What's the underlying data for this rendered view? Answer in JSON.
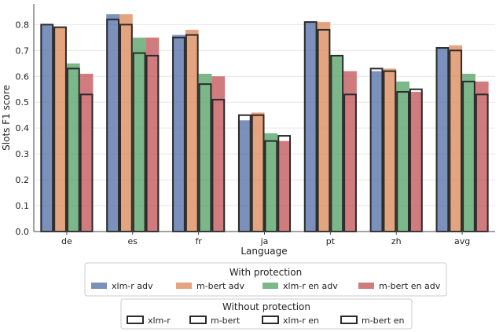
{
  "chart_data": {
    "type": "bar",
    "xlabel": "Language",
    "ylabel": "Slots F1 score",
    "ylim": [
      0,
      0.88
    ],
    "yticks": [
      0.0,
      0.1,
      0.2,
      0.3,
      0.4,
      0.5,
      0.6,
      0.7,
      0.8
    ],
    "grid": "horizontal",
    "categories": [
      "de",
      "es",
      "fr",
      "ja",
      "pt",
      "zh",
      "avg"
    ],
    "series_with_protection": [
      {
        "name": "xlm-r adv",
        "color": "#5a74aa",
        "values": [
          0.8,
          0.84,
          0.76,
          0.43,
          0.81,
          0.62,
          0.71
        ]
      },
      {
        "name": "m-bert adv",
        "color": "#dd8d5f",
        "values": [
          0.79,
          0.84,
          0.78,
          0.46,
          0.81,
          0.63,
          0.72
        ]
      },
      {
        "name": "xlm-r en adv",
        "color": "#5aa56a",
        "values": [
          0.65,
          0.75,
          0.61,
          0.38,
          0.68,
          0.58,
          0.61
        ]
      },
      {
        "name": "m-bert en adv",
        "color": "#c45a5e",
        "values": [
          0.61,
          0.75,
          0.6,
          0.35,
          0.62,
          0.54,
          0.58
        ]
      }
    ],
    "series_without_protection": [
      {
        "name": "xlm-r",
        "values": [
          0.8,
          0.82,
          0.75,
          0.45,
          0.81,
          0.63,
          0.71
        ]
      },
      {
        "name": "m-bert",
        "values": [
          0.79,
          0.8,
          0.76,
          0.45,
          0.78,
          0.62,
          0.7
        ]
      },
      {
        "name": "xlm-r en",
        "values": [
          0.63,
          0.69,
          0.57,
          0.35,
          0.68,
          0.54,
          0.58
        ]
      },
      {
        "name": "m-bert en",
        "values": [
          0.53,
          0.68,
          0.51,
          0.37,
          0.53,
          0.55,
          0.53
        ]
      }
    ],
    "legend_with_protection_title": "With protection",
    "legend_without_protection_title": "Without protection",
    "legend_placement": "bottom-center"
  }
}
